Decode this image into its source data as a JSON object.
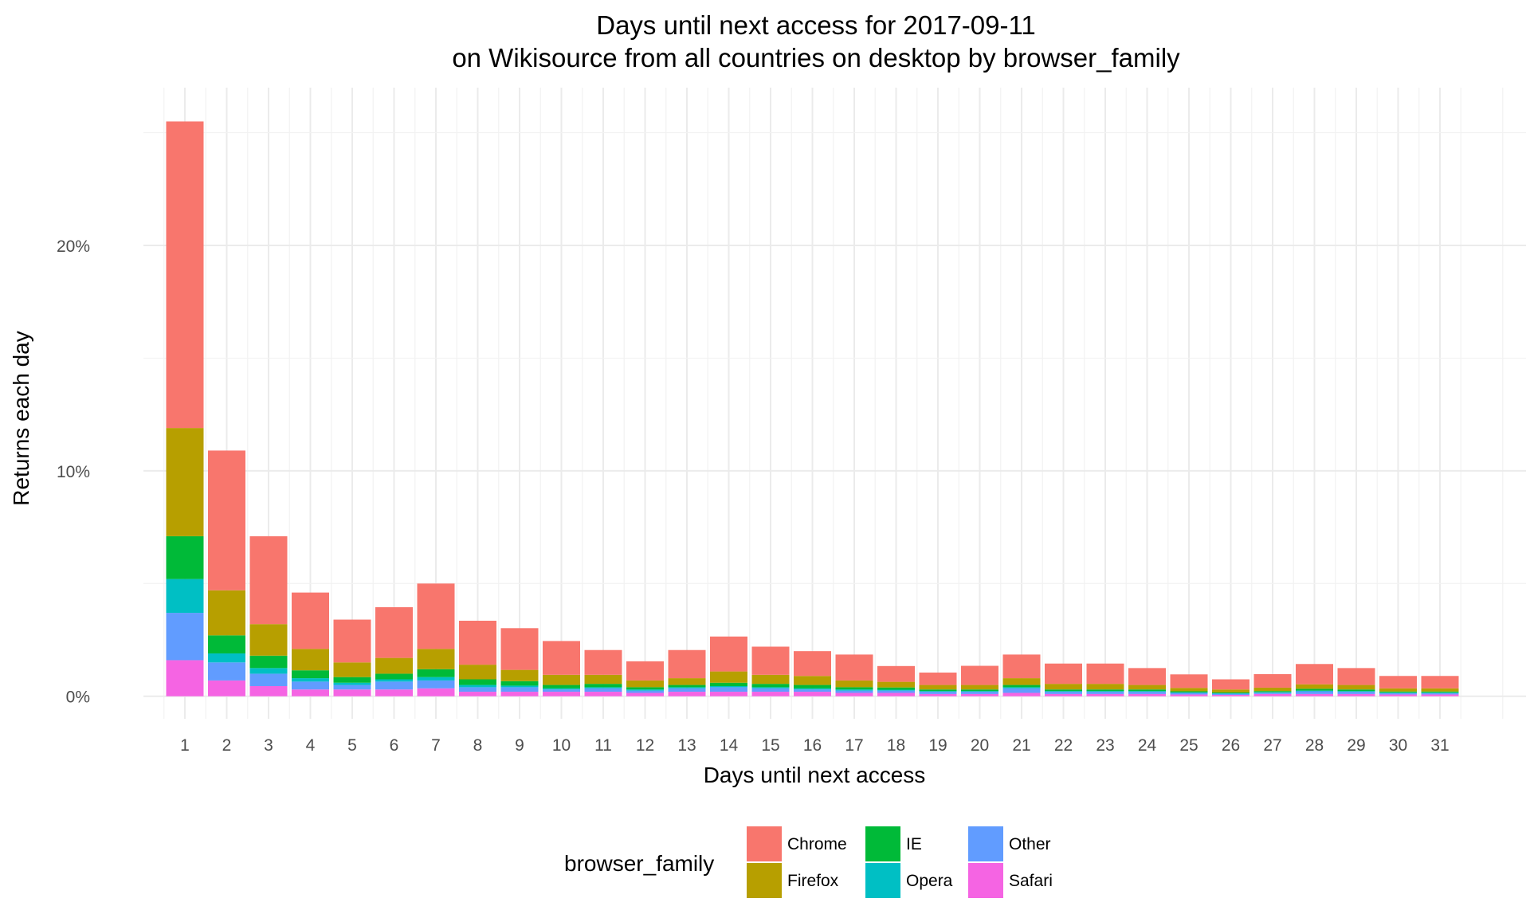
{
  "chart_data": {
    "type": "bar",
    "stacked": true,
    "title_line1": "Days until next access for 2017-09-11",
    "title_line2": "on Wikisource from all countries on desktop by browser_family",
    "xlabel": "Days until next access",
    "ylabel": "Returns each day",
    "ylim": [
      -1.0,
      27.0
    ],
    "y_ticks": [
      0,
      10,
      20
    ],
    "y_tick_labels": [
      "0%",
      "10%",
      "20%"
    ],
    "categories": [
      "1",
      "2",
      "3",
      "4",
      "5",
      "6",
      "7",
      "8",
      "9",
      "10",
      "11",
      "12",
      "13",
      "14",
      "15",
      "16",
      "17",
      "18",
      "19",
      "20",
      "21",
      "22",
      "23",
      "24",
      "25",
      "26",
      "27",
      "28",
      "29",
      "30",
      "31"
    ],
    "legend_title": "browser_family",
    "legend_position": "bottom",
    "grid": true,
    "series": [
      {
        "name": "Safari",
        "color": "#F564E3",
        "values": [
          1.6,
          0.7,
          0.45,
          0.3,
          0.3,
          0.3,
          0.35,
          0.2,
          0.2,
          0.2,
          0.2,
          0.15,
          0.2,
          0.2,
          0.2,
          0.2,
          0.15,
          0.15,
          0.1,
          0.1,
          0.15,
          0.1,
          0.1,
          0.1,
          0.08,
          0.06,
          0.1,
          0.1,
          0.1,
          0.08,
          0.08
        ]
      },
      {
        "name": "Other",
        "color": "#619CFF",
        "values": [
          2.1,
          0.8,
          0.55,
          0.35,
          0.2,
          0.35,
          0.35,
          0.2,
          0.2,
          0.1,
          0.15,
          0.1,
          0.15,
          0.2,
          0.15,
          0.1,
          0.1,
          0.1,
          0.1,
          0.1,
          0.2,
          0.1,
          0.1,
          0.1,
          0.07,
          0.05,
          0.06,
          0.12,
          0.1,
          0.06,
          0.06
        ]
      },
      {
        "name": "Opera",
        "color": "#00BFC4",
        "values": [
          1.5,
          0.4,
          0.25,
          0.15,
          0.1,
          0.1,
          0.15,
          0.1,
          0.07,
          0.05,
          0.05,
          0.05,
          0.05,
          0.05,
          0.05,
          0.05,
          0.05,
          0.04,
          0.03,
          0.03,
          0.05,
          0.03,
          0.03,
          0.03,
          0.02,
          0.02,
          0.02,
          0.03,
          0.03,
          0.02,
          0.02
        ]
      },
      {
        "name": "IE",
        "color": "#00BA38",
        "values": [
          1.9,
          0.8,
          0.55,
          0.35,
          0.25,
          0.25,
          0.35,
          0.25,
          0.2,
          0.15,
          0.15,
          0.1,
          0.1,
          0.15,
          0.15,
          0.15,
          0.1,
          0.1,
          0.07,
          0.07,
          0.1,
          0.07,
          0.07,
          0.07,
          0.05,
          0.04,
          0.05,
          0.08,
          0.07,
          0.05,
          0.05
        ]
      },
      {
        "name": "Firefox",
        "color": "#B79F00",
        "values": [
          4.8,
          2.0,
          1.4,
          0.95,
          0.65,
          0.7,
          0.9,
          0.65,
          0.5,
          0.45,
          0.4,
          0.3,
          0.3,
          0.5,
          0.4,
          0.4,
          0.3,
          0.25,
          0.2,
          0.2,
          0.3,
          0.25,
          0.25,
          0.2,
          0.15,
          0.13,
          0.15,
          0.2,
          0.2,
          0.14,
          0.14
        ]
      },
      {
        "name": "Chrome",
        "color": "#F8766D",
        "values": [
          13.6,
          6.2,
          3.9,
          2.5,
          1.9,
          2.25,
          2.9,
          1.95,
          1.85,
          1.5,
          1.1,
          0.85,
          1.25,
          1.55,
          1.25,
          1.1,
          1.15,
          0.7,
          0.55,
          0.85,
          1.05,
          0.9,
          0.9,
          0.75,
          0.6,
          0.45,
          0.6,
          0.9,
          0.75,
          0.55,
          0.55
        ]
      }
    ]
  }
}
